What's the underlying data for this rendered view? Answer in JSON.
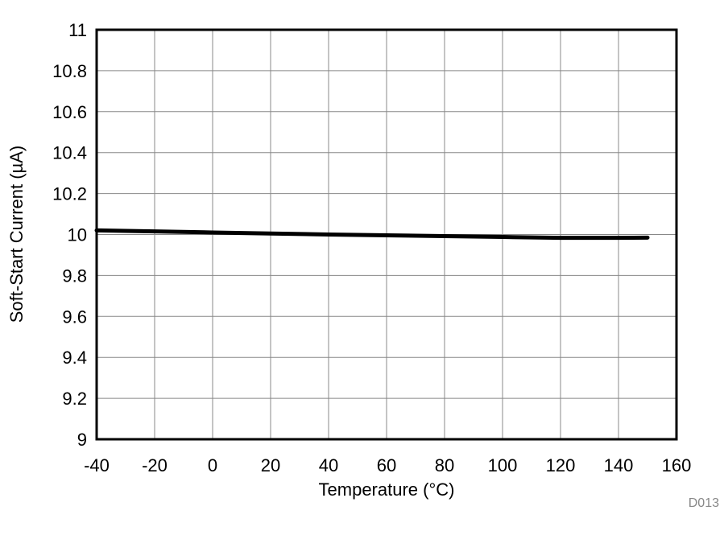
{
  "chart_data": {
    "type": "line",
    "title": "",
    "xlabel": "Temperature (°C)",
    "ylabel": "Soft-Start Current (µA)",
    "xlim": [
      -40,
      160
    ],
    "ylim": [
      9,
      11
    ],
    "xticks": [
      "-40",
      "-20",
      "0",
      "20",
      "40",
      "60",
      "80",
      "100",
      "120",
      "140",
      "160"
    ],
    "yticks": [
      "9",
      "9.2",
      "9.4",
      "9.6",
      "9.8",
      "10",
      "10.2",
      "10.4",
      "10.6",
      "10.8",
      "11"
    ],
    "grid": true,
    "series": [
      {
        "x": [
          -40,
          -20,
          0,
          20,
          40,
          60,
          80,
          100,
          120,
          140,
          150
        ],
        "y": [
          10.02,
          10.015,
          10.01,
          10.005,
          10.0,
          9.996,
          9.992,
          9.988,
          9.984,
          9.984,
          9.985
        ],
        "color": "#000000"
      }
    ],
    "annotation": "D013"
  }
}
